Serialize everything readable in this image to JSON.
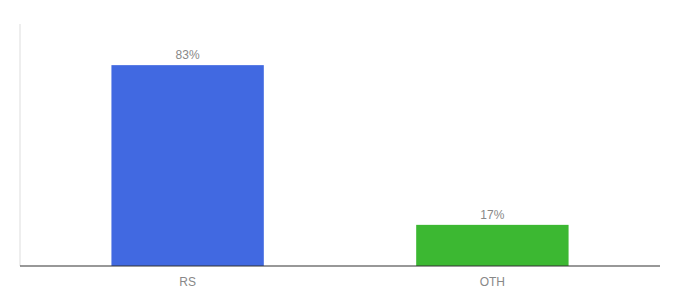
{
  "chart_data": {
    "type": "bar",
    "categories": [
      "RS",
      "OTH"
    ],
    "values": [
      83,
      17
    ],
    "value_labels": [
      "83%",
      "17%"
    ],
    "data_labels": true,
    "colors": [
      "#4169e1",
      "#3cb832"
    ],
    "ylim": [
      0,
      100
    ],
    "tick_labels": "x",
    "grid": false
  }
}
